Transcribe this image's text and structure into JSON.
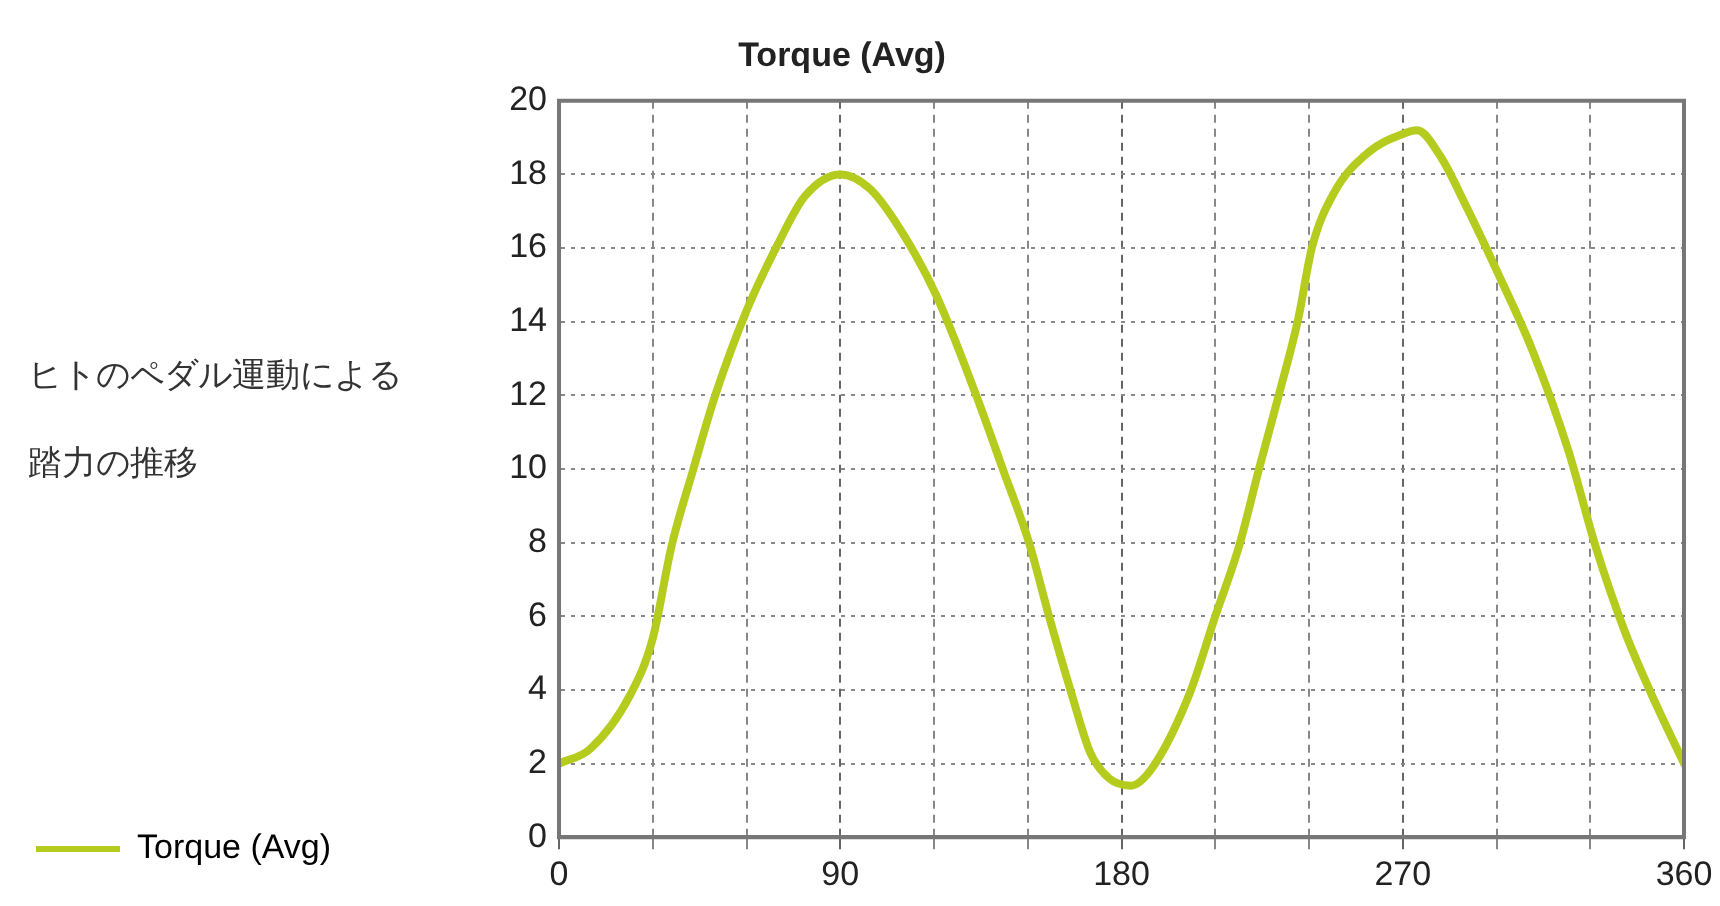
{
  "chart_data": {
    "type": "line",
    "title": "Torque (Avg)",
    "annotations": [
      "ヒトのペダル運動による踏力の推移"
    ],
    "x": [
      0,
      10,
      23,
      30,
      36,
      43,
      50,
      60,
      70,
      78.6,
      90,
      99.6,
      110,
      120.8,
      133.5,
      142,
      150.4,
      156.8,
      164,
      170,
      176,
      183,
      190,
      201.8,
      210,
      217.6,
      224,
      230.3,
      236.6,
      240.9,
      248,
      259,
      270,
      274.6,
      282,
      290.5,
      300,
      311.6,
      323,
      331.7,
      341,
      349.5,
      360
    ],
    "series": [
      {
        "name": "Torque (Avg)",
        "color": "#b5cc1e",
        "values": [
          2.0,
          2.4,
          3.9,
          5.4,
          7.9,
          10.0,
          12.0,
          14.3,
          16.1,
          17.4,
          18.0,
          17.6,
          16.4,
          14.7,
          12.0,
          10.0,
          8.0,
          6.0,
          3.9,
          2.3,
          1.6,
          1.4,
          1.9,
          3.9,
          6.0,
          7.9,
          10.0,
          12.0,
          14.1,
          16.0,
          17.5,
          18.6,
          19.1,
          19.2,
          18.5,
          17.1,
          15.4,
          13.2,
          10.5,
          7.9,
          5.6,
          3.9,
          2.0
        ]
      }
    ],
    "xlim": [
      0,
      360
    ],
    "xticks": [
      0,
      {
        "value": 30,
        "label": null
      },
      {
        "value": 60,
        "label": null
      },
      90,
      {
        "value": 120,
        "label": null
      },
      {
        "value": 150,
        "label": null
      },
      180,
      {
        "value": 210,
        "label": null
      },
      {
        "value": 240,
        "label": null
      },
      270,
      {
        "value": 300,
        "label": null
      },
      {
        "value": 330,
        "label": null
      },
      360
    ],
    "ylim": [
      0,
      20
    ],
    "yticks": [
      0,
      2,
      4,
      6,
      8,
      10,
      12,
      14,
      16,
      18,
      20
    ],
    "grid": true,
    "legend": "bottom left",
    "marker": "none",
    "line_style": "solid"
  }
}
